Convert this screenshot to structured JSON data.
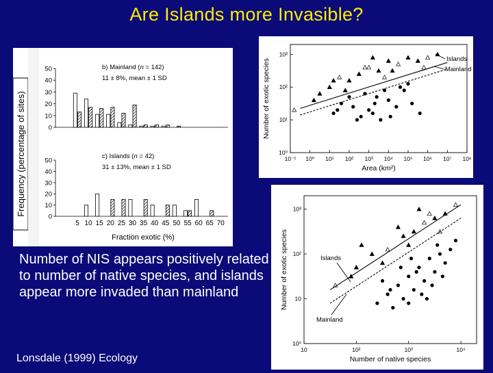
{
  "slide": {
    "title": "Are Islands more Invasible?",
    "caption": "Number of NIS appears positively related to number of native species, and islands appear more invaded than mainland",
    "credit": "Lonsdale (1999) Ecology"
  },
  "colors": {
    "background": "#0a0a78",
    "title": "#ffee00",
    "text": "#ffffff"
  },
  "chart_data": [
    {
      "type": "bar",
      "ylabel": "Frequency (percentage of sites)",
      "xlabel": "Fraction exotic (%)",
      "x_ticks": [
        "5",
        "10",
        "15",
        "20",
        "25",
        "30",
        "35",
        "40",
        "45",
        "50",
        "55",
        "60",
        "65",
        "70"
      ],
      "y_ticks": [
        "0",
        "10",
        "20",
        "30",
        "40",
        "50"
      ],
      "ylim": [
        0,
        50
      ],
      "panels": [
        {
          "label_prefix": "b) Mainland (",
          "n_symbol": "n",
          "label_suffix": " = 142)",
          "stat": "11 ± 8%, mean ± 1 SD",
          "categories": [
            "5",
            "10",
            "15",
            "20",
            "25",
            "30",
            "35",
            "40",
            "45",
            "50"
          ],
          "values_open": [
            29,
            24,
            11,
            11,
            4,
            2,
            1,
            1,
            1,
            0
          ],
          "values_hatched": [
            13,
            17,
            16,
            17,
            12,
            19,
            2,
            2,
            2,
            1
          ]
        },
        {
          "label_prefix": "c) Islands (",
          "n_symbol": "n",
          "label_suffix": " = 42)",
          "stat": "31 ± 13%, mean ± 1 SD",
          "categories": [
            "10",
            "15",
            "20",
            "25",
            "30",
            "35",
            "40",
            "45",
            "50",
            "55",
            "60",
            "65"
          ],
          "values_open": [
            10,
            20,
            0,
            0,
            15,
            0,
            10,
            0,
            10,
            5,
            15,
            0
          ],
          "values_hatched": [
            0,
            0,
            15,
            15,
            0,
            15,
            0,
            10,
            0,
            5,
            0,
            5
          ]
        }
      ]
    },
    {
      "type": "scatter",
      "xlabel": "Area (km²)",
      "ylabel": "Number of exotic species",
      "x_ticks": [
        "10⁻¹",
        "10⁰",
        "10¹",
        "10²",
        "10³",
        "10⁴",
        "10⁵",
        "10⁶",
        "10⁷",
        "10⁸"
      ],
      "y_ticks": [
        "10⁰",
        "10¹",
        "10²",
        "10³"
      ],
      "xlim": [
        -1,
        8
      ],
      "ylim": [
        0,
        3.3
      ],
      "series": [
        {
          "name": "Islands",
          "line": [
            [
              -0.5,
              1.35
            ],
            [
              7.0,
              2.75
            ]
          ]
        },
        {
          "name": "Mainland",
          "line": [
            [
              -0.5,
              1.15
            ],
            [
              7.0,
              2.55
            ]
          ]
        }
      ],
      "points_islands_log": [
        [
          -0.8,
          1.3
        ],
        [
          0.5,
          1.8
        ],
        [
          1.0,
          2.0
        ],
        [
          1.5,
          2.3
        ],
        [
          2.0,
          2.2
        ],
        [
          2.5,
          2.4
        ],
        [
          3.0,
          2.6
        ],
        [
          3.5,
          2.5
        ],
        [
          4.0,
          2.8
        ],
        [
          4.5,
          2.7
        ],
        [
          5.0,
          2.9
        ],
        [
          5.5,
          2.8
        ],
        [
          6.0,
          2.9
        ],
        [
          6.5,
          3.0
        ],
        [
          3.2,
          2.9
        ],
        [
          2.8,
          2.6
        ],
        [
          1.8,
          1.9
        ],
        [
          4.2,
          2.5
        ],
        [
          5.8,
          2.6
        ],
        [
          0.2,
          1.6
        ],
        [
          1.2,
          2.2
        ],
        [
          3.8,
          2.3
        ]
      ],
      "points_mainland_log": [
        [
          1.2,
          1.2
        ],
        [
          1.6,
          1.5
        ],
        [
          2.2,
          1.4
        ],
        [
          2.6,
          1.1
        ],
        [
          3.0,
          1.3
        ],
        [
          3.4,
          1.7
        ],
        [
          3.6,
          1.0
        ],
        [
          4.0,
          1.6
        ],
        [
          4.4,
          1.4
        ],
        [
          4.8,
          1.9
        ],
        [
          5.2,
          1.5
        ],
        [
          5.6,
          1.2
        ],
        [
          2.8,
          1.8
        ],
        [
          3.2,
          1.2
        ],
        [
          3.8,
          1.9
        ],
        [
          4.6,
          2.0
        ],
        [
          2.0,
          1.7
        ],
        [
          1.4,
          1.3
        ],
        [
          5.0,
          2.1
        ],
        [
          2.4,
          1.0
        ],
        [
          3.3,
          1.5
        ],
        [
          4.1,
          1.1
        ]
      ]
    },
    {
      "type": "scatter",
      "xlabel": "Number of native species",
      "ylabel": "Number of exotic species",
      "x_ticks": [
        "10",
        "10²",
        "10³",
        "10⁴"
      ],
      "y_ticks": [
        "10⁰",
        "10",
        "10²",
        "10³"
      ],
      "xlim": [
        1,
        4.3
      ],
      "ylim": [
        0,
        3.3
      ],
      "series": [
        {
          "name": "Islands",
          "line": [
            [
              1.5,
              1.2
            ],
            [
              4.0,
              3.1
            ]
          ]
        },
        {
          "name": "Mainland",
          "line": [
            [
              1.5,
              0.9
            ],
            [
              4.0,
              2.8
            ]
          ]
        }
      ],
      "points_islands_log": [
        [
          1.6,
          1.3
        ],
        [
          2.0,
          1.7
        ],
        [
          2.3,
          2.0
        ],
        [
          2.6,
          2.1
        ],
        [
          2.9,
          2.4
        ],
        [
          3.1,
          2.5
        ],
        [
          3.3,
          2.7
        ],
        [
          3.5,
          2.8
        ],
        [
          3.7,
          2.9
        ],
        [
          3.9,
          3.1
        ],
        [
          2.1,
          2.2
        ],
        [
          2.8,
          2.6
        ],
        [
          3.4,
          2.9
        ],
        [
          2.5,
          1.8
        ],
        [
          3.0,
          2.2
        ],
        [
          3.6,
          2.5
        ],
        [
          1.9,
          1.5
        ],
        [
          3.2,
          3.0
        ]
      ],
      "points_mainland_log": [
        [
          2.4,
          0.9
        ],
        [
          2.6,
          1.1
        ],
        [
          2.8,
          1.3
        ],
        [
          2.9,
          1.0
        ],
        [
          3.0,
          1.5
        ],
        [
          3.1,
          1.2
        ],
        [
          3.2,
          1.7
        ],
        [
          3.3,
          1.4
        ],
        [
          3.4,
          1.9
        ],
        [
          3.5,
          1.6
        ],
        [
          3.6,
          2.0
        ],
        [
          3.7,
          1.8
        ],
        [
          2.7,
          0.8
        ],
        [
          3.0,
          0.9
        ],
        [
          3.25,
          1.1
        ],
        [
          3.45,
          1.3
        ],
        [
          3.8,
          2.1
        ],
        [
          2.5,
          1.4
        ],
        [
          3.15,
          1.6
        ],
        [
          3.55,
          2.2
        ],
        [
          2.85,
          1.7
        ],
        [
          3.35,
          1.0
        ],
        [
          3.05,
          1.9
        ],
        [
          3.65,
          1.5
        ],
        [
          2.65,
          1.2
        ],
        [
          3.9,
          2.3
        ]
      ]
    }
  ]
}
